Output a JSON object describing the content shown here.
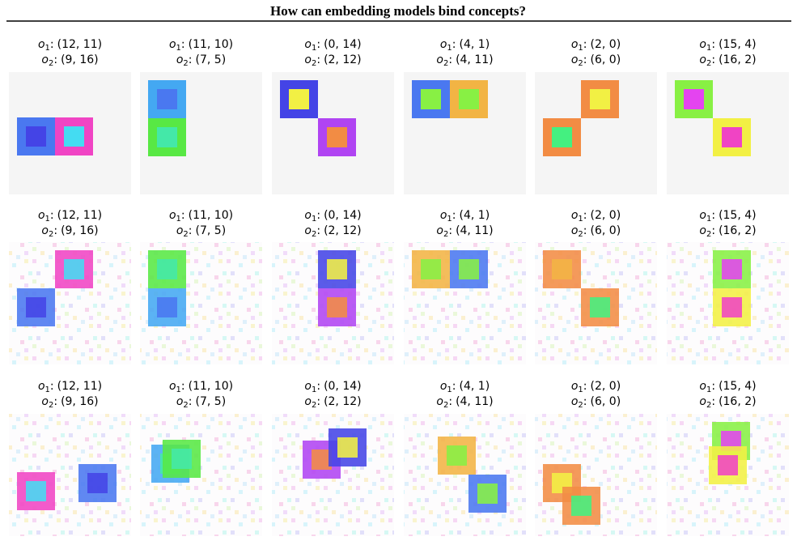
{
  "title": "How can embedding models bind concepts?",
  "object_labels": [
    {
      "symbol": "o",
      "index": "1",
      "sep": ":"
    },
    {
      "symbol": "o",
      "index": "2",
      "sep": ":"
    }
  ],
  "rows": [
    [
      {
        "o1": "(12, 11)",
        "o2": "(9, 16)"
      },
      {
        "o1": "(11, 10)",
        "o2": "(7, 5)"
      },
      {
        "o1": "(0, 14)",
        "o2": "(2, 12)"
      },
      {
        "o1": "(4, 1)",
        "o2": "(4, 11)"
      },
      {
        "o1": "(2, 0)",
        "o2": "(6, 0)"
      },
      {
        "o1": "(15, 4)",
        "o2": "(16, 2)"
      }
    ],
    [
      {
        "o1": "(12, 11)",
        "o2": "(9, 16)"
      },
      {
        "o1": "(11, 10)",
        "o2": "(7, 5)"
      },
      {
        "o1": "(0, 14)",
        "o2": "(2, 12)"
      },
      {
        "o1": "(4, 1)",
        "o2": "(4, 11)"
      },
      {
        "o1": "(2, 0)",
        "o2": "(6, 0)"
      },
      {
        "o1": "(15, 4)",
        "o2": "(16, 2)"
      }
    ],
    [
      {
        "o1": "(12, 11)",
        "o2": "(9, 16)"
      },
      {
        "o1": "(11, 10)",
        "o2": "(7, 5)"
      },
      {
        "o1": "(0, 14)",
        "o2": "(2, 12)"
      },
      {
        "o1": "(4, 1)",
        "o2": "(4, 11)"
      },
      {
        "o1": "(2, 0)",
        "o2": "(6, 0)"
      },
      {
        "o1": "(15, 4)",
        "o2": "(16, 2)"
      }
    ]
  ]
}
